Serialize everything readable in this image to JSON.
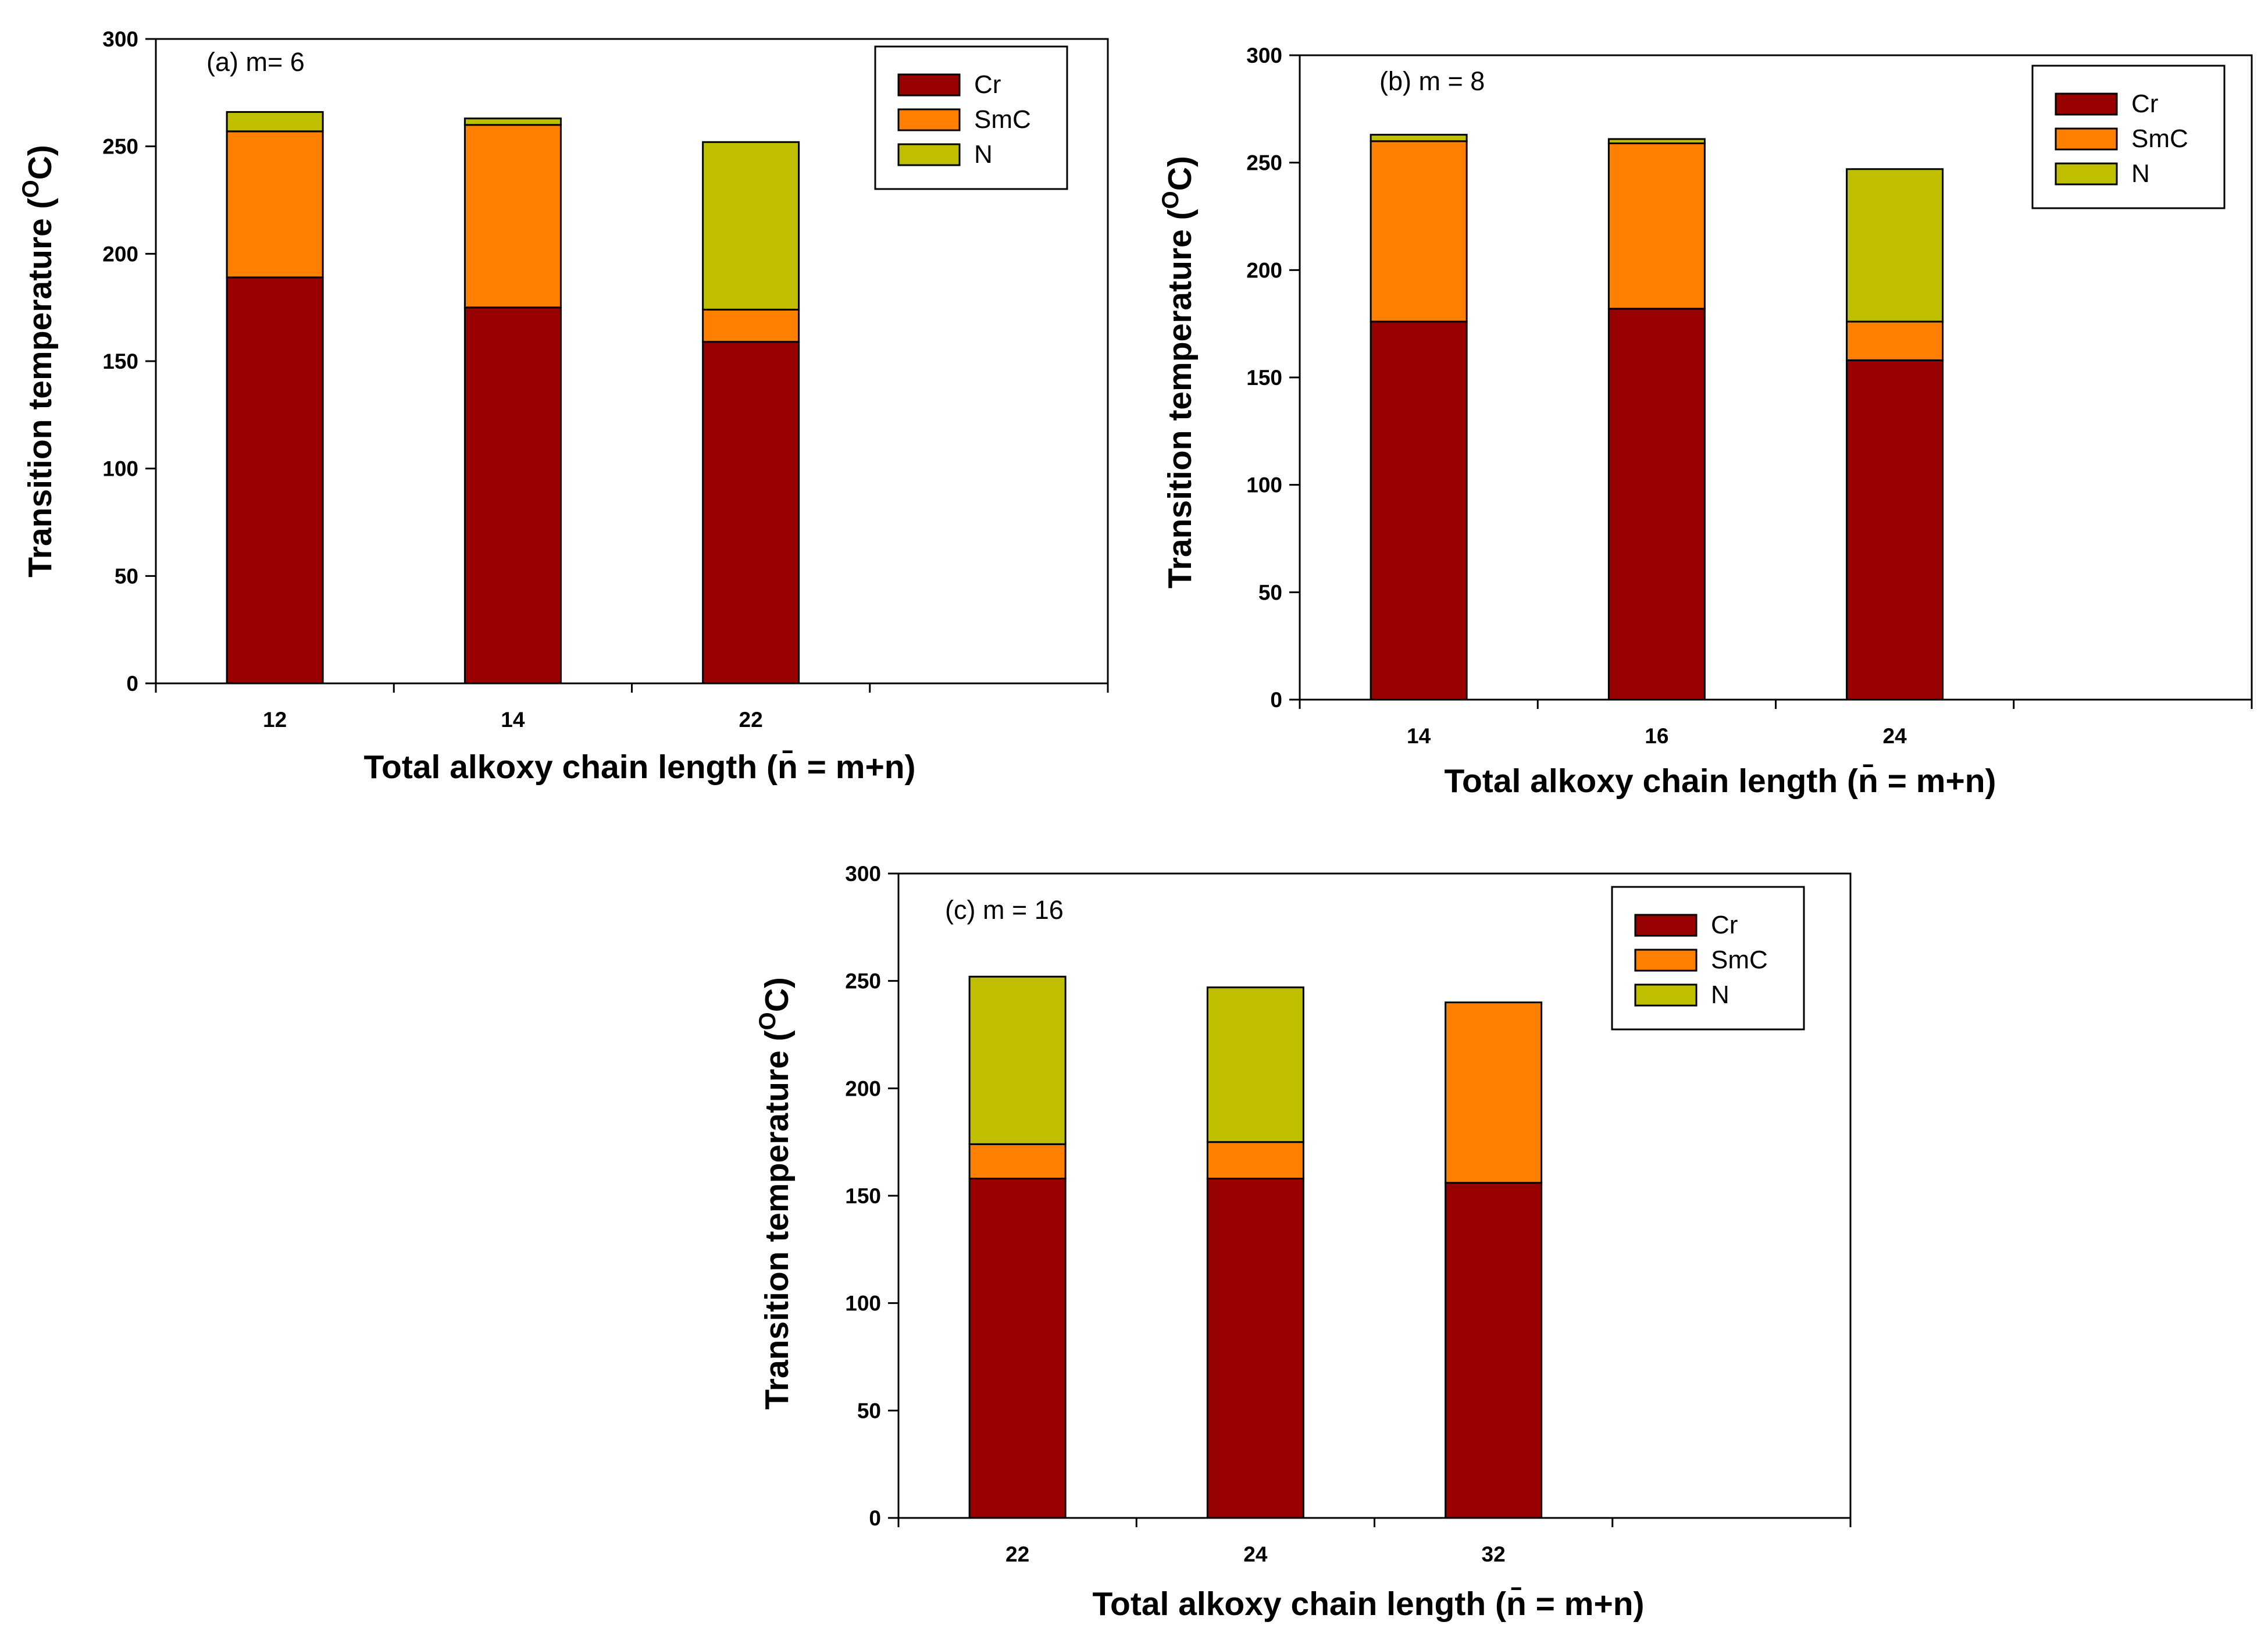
{
  "colors": {
    "Cr": "#990000",
    "SmC": "#FF8000",
    "N": "#BFBF00",
    "axis": "#000000"
  },
  "chart_data": [
    {
      "type": "bar",
      "stacked": true,
      "annotation": "(a) m= 6",
      "categories": [
        "12",
        "14",
        "22"
      ],
      "series": [
        {
          "name": "Cr",
          "values": [
            189,
            175,
            159
          ]
        },
        {
          "name": "SmC",
          "values": [
            68,
            85,
            15
          ]
        },
        {
          "name": "N",
          "values": [
            9,
            3,
            78
          ]
        }
      ],
      "xlabel": "Total alkoxy chain length (n̄ = m+n)",
      "ylabel_main": "Transition temperature (",
      "ylabel_sup": "O",
      "ylabel_tail": "C)",
      "ylim": [
        0,
        300
      ],
      "yticks": [
        "0",
        "50",
        "100",
        "150",
        "200",
        "250",
        "300"
      ],
      "legend_position": "top-right",
      "grid": false
    },
    {
      "type": "bar",
      "stacked": true,
      "annotation": "(b) m = 8",
      "categories": [
        "14",
        "16",
        "24"
      ],
      "series": [
        {
          "name": "Cr",
          "values": [
            176,
            182,
            158
          ]
        },
        {
          "name": "SmC",
          "values": [
            84,
            77,
            18
          ]
        },
        {
          "name": "N",
          "values": [
            3,
            2,
            71
          ]
        }
      ],
      "xlabel": "Total alkoxy chain length  (n̄ = m+n)",
      "ylabel_main": "Transition temperature (",
      "ylabel_sup": "O",
      "ylabel_tail": "C)",
      "ylim": [
        0,
        300
      ],
      "yticks": [
        "0",
        "50",
        "100",
        "150",
        "200",
        "250",
        "300"
      ],
      "legend_position": "top-right",
      "grid": false
    },
    {
      "type": "bar",
      "stacked": true,
      "annotation": "(c) m = 16",
      "categories": [
        "22",
        "24",
        "32"
      ],
      "series": [
        {
          "name": "Cr",
          "values": [
            158,
            158,
            156
          ]
        },
        {
          "name": "SmC",
          "values": [
            16,
            17,
            84
          ]
        },
        {
          "name": "N",
          "values": [
            78,
            72,
            0
          ]
        }
      ],
      "xlabel": "Total alkoxy chain length (n̄ = m+n)",
      "ylabel_main": "Transition temperature (",
      "ylabel_sup": "O",
      "ylabel_tail": "C)",
      "ylim": [
        0,
        300
      ],
      "yticks": [
        "0",
        "50",
        "100",
        "150",
        "200",
        "250",
        "300"
      ],
      "legend_position": "top-right",
      "grid": false
    }
  ]
}
